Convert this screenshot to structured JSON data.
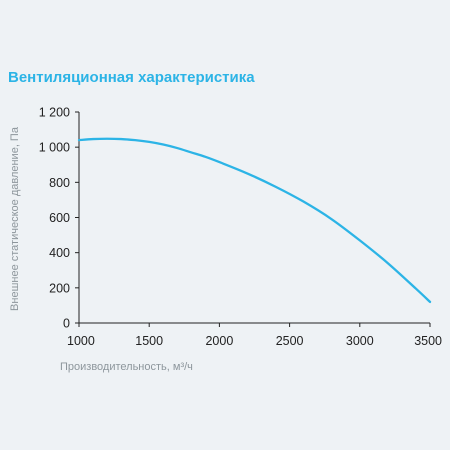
{
  "title": "Вентиляционная характеристика",
  "colors": {
    "title": "#2cb4e6",
    "curve": "#2cb4e6",
    "axis": "#222222",
    "axis_label": "#8d969c",
    "background": "#eef2f5"
  },
  "chart_data": {
    "type": "line",
    "title": "Вентиляционная характеристика",
    "xlabel": "Производительность, м³/ч",
    "ylabel": "Внешнее статическое давление, Па",
    "xlim": [
      1000,
      3500
    ],
    "ylim": [
      0,
      1200
    ],
    "x_ticks": [
      1000,
      1500,
      2000,
      2500,
      3000,
      3500
    ],
    "x_tick_labels": [
      "1000",
      "1500",
      "2000",
      "2500",
      "3000",
      "3500"
    ],
    "y_ticks": [
      0,
      200,
      400,
      600,
      800,
      1000,
      1200
    ],
    "y_tick_labels": [
      "0",
      "200",
      "400",
      "600",
      "800",
      "1 000",
      "1 200"
    ],
    "grid": false,
    "series": [
      {
        "x": [
          1000,
          1100,
          1200,
          1300,
          1400,
          1500,
          1600,
          1700,
          1800,
          1900,
          2000,
          2200,
          2400,
          2600,
          2800,
          3000,
          3200,
          3400,
          3500
        ],
        "y": [
          1040,
          1046,
          1048,
          1046,
          1040,
          1030,
          1015,
          995,
          970,
          945,
          915,
          850,
          775,
          690,
          590,
          470,
          340,
          195,
          120
        ]
      }
    ]
  }
}
